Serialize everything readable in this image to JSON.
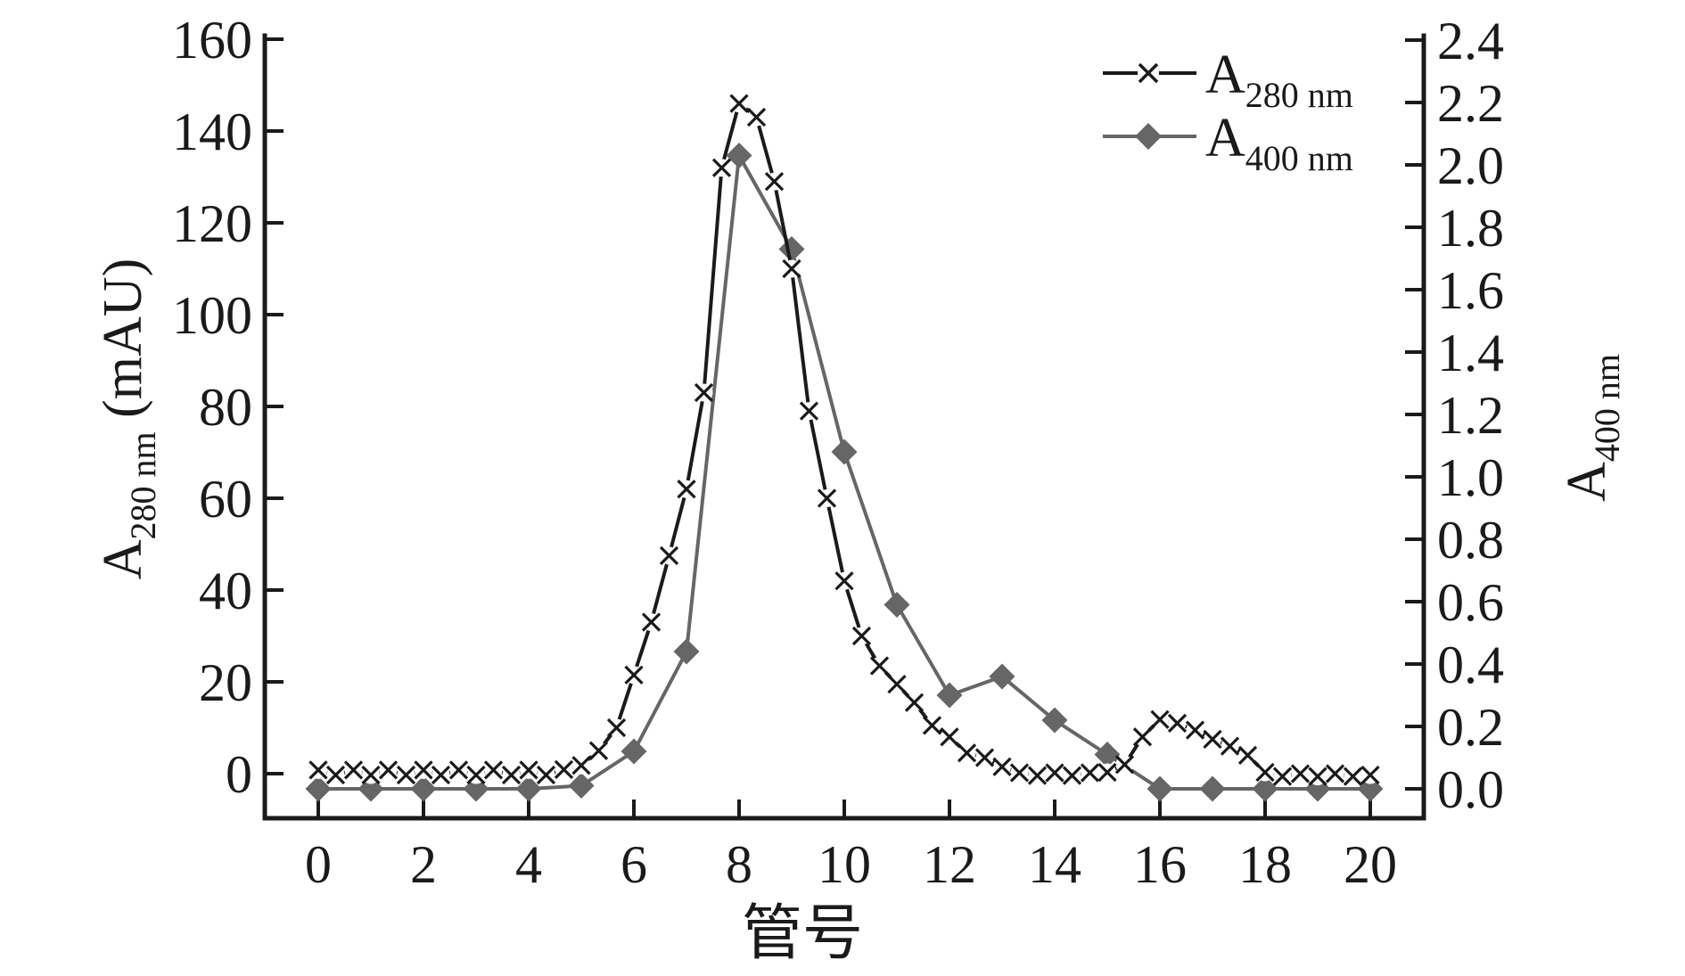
{
  "figure": {
    "xlabel": "管号",
    "ylabel_left": {
      "base": "A",
      "sub": "280 nm",
      "unit": " (mAU)"
    },
    "ylabel_right": {
      "base": "A",
      "sub": "400 nm"
    },
    "legend": [
      {
        "base": "A",
        "sub": "280 nm",
        "marker": "x-cross",
        "color": "#1a1a1a"
      },
      {
        "base": "A",
        "sub": "400 nm",
        "marker": "diamond",
        "color": "#666666"
      }
    ]
  },
  "chart_data": {
    "type": "line",
    "title": "",
    "xlabel": "管号",
    "ylabel_left": "A280 nm (mAU)",
    "ylabel_right": "A400 nm",
    "grid": false,
    "legend_position": "upper right",
    "x_axis": {
      "ticks": [
        0,
        2,
        4,
        6,
        8,
        10,
        12,
        14,
        16,
        18,
        20
      ],
      "range": [
        -1,
        21
      ]
    },
    "y_axis_left": {
      "ticks": [
        0,
        20,
        40,
        60,
        80,
        100,
        120,
        140,
        160
      ],
      "range": [
        -9.7,
        161.2
      ]
    },
    "y_axis_right": {
      "tick_labels": [
        "0.0",
        "0.2",
        "0.4",
        "0.6",
        "0.8",
        "1.0",
        "1.2",
        "1.4",
        "1.6",
        "1.8",
        "2.0",
        "2.2",
        "2.4"
      ],
      "range": [
        -0.094,
        2.42
      ]
    },
    "series": [
      {
        "id": "a280",
        "name": "A280 nm",
        "axis": "left",
        "marker": "x",
        "color": "#1a1a1a",
        "x": [
          0,
          0.33,
          0.67,
          1,
          1.33,
          1.67,
          2,
          2.33,
          2.67,
          3,
          3.33,
          3.67,
          4,
          4.33,
          4.67,
          5,
          5.33,
          5.67,
          6,
          6.33,
          6.67,
          7,
          7.33,
          7.67,
          8,
          8.33,
          8.67,
          9,
          9.33,
          9.67,
          10,
          10.33,
          10.67,
          11,
          11.33,
          11.67,
          12,
          12.33,
          12.67,
          13,
          13.33,
          13.67,
          14,
          14.33,
          14.67,
          15,
          15.33,
          15.67,
          16,
          16.33,
          16.67,
          17,
          17.33,
          17.67,
          18,
          18.33,
          18.67,
          19,
          19.33,
          19.67,
          20
        ],
        "y": [
          0.8,
          -0.3,
          0.8,
          -0.3,
          0.8,
          -0.3,
          0.8,
          -0.3,
          0.8,
          -0.3,
          0.8,
          -0.3,
          0.8,
          -0.3,
          0.9,
          1.8,
          5,
          10,
          21.5,
          33,
          47.5,
          62,
          83,
          132,
          146,
          143,
          129,
          110,
          79,
          60,
          42,
          30,
          23.5,
          19.5,
          15.5,
          10.5,
          8,
          4.5,
          3.5,
          1.5,
          0.2,
          -0.4,
          0.2,
          -0.4,
          0.2,
          0.3,
          2,
          8,
          11.8,
          11,
          9.5,
          7.5,
          6,
          4,
          0.3,
          -0.6,
          0,
          -0.6,
          0,
          -0.6,
          -0.3
        ]
      },
      {
        "id": "a400",
        "name": "A400 nm",
        "axis": "right",
        "marker": "diamond",
        "color": "#666666",
        "x": [
          0,
          1,
          2,
          3,
          4,
          5,
          6,
          7,
          8,
          9,
          10,
          11,
          12,
          13,
          14,
          15,
          16,
          17,
          18,
          19,
          20
        ],
        "y": [
          0,
          0,
          0,
          0,
          0,
          0.01,
          0.12,
          0.44,
          2.03,
          1.73,
          1.08,
          0.59,
          0.3,
          0.36,
          0.22,
          0.11,
          0,
          0,
          0,
          0,
          0
        ]
      }
    ]
  }
}
